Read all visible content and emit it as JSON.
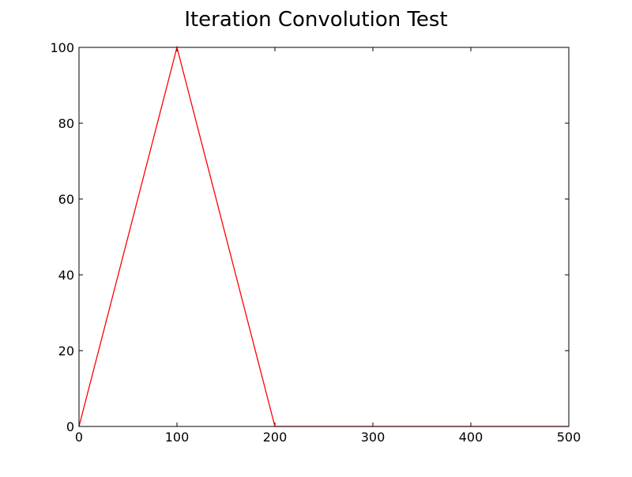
{
  "chart_data": {
    "type": "line",
    "title": "Iteration Convolution Test",
    "xlabel": "",
    "ylabel": "",
    "xlim": [
      0,
      500
    ],
    "ylim": [
      0,
      100
    ],
    "x_ticks": [
      0,
      100,
      200,
      300,
      400,
      500
    ],
    "y_ticks": [
      0,
      20,
      40,
      60,
      80,
      100
    ],
    "grid": false,
    "legend": "none",
    "series": [
      {
        "color": "#ff0000",
        "x": [
          0,
          100,
          200,
          300,
          400,
          500
        ],
        "y": [
          0,
          100,
          0,
          0,
          0,
          0
        ]
      }
    ]
  }
}
